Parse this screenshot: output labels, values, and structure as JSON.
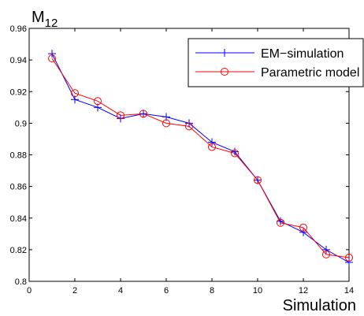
{
  "chart_data": {
    "type": "line",
    "title": "",
    "xlabel": "Simulation",
    "ylabel": "M",
    "ylabel_subscript": "12",
    "xlim": [
      0,
      14
    ],
    "ylim": [
      0.8,
      0.96
    ],
    "xticks": [
      0,
      2,
      4,
      6,
      8,
      10,
      12,
      14
    ],
    "yticks": [
      0.8,
      0.82,
      0.84,
      0.86,
      0.88,
      0.9,
      0.92,
      0.94,
      0.96
    ],
    "x_tick_labels": [
      "0",
      "2",
      "4",
      "6",
      "8",
      "10",
      "12",
      "14"
    ],
    "y_tick_labels": [
      "0.8",
      "0.82",
      "0.84",
      "0.86",
      "0.88",
      "0.9",
      "0.92",
      "0.94",
      "0.96"
    ],
    "grid": false,
    "legend_position": "top-right",
    "x": [
      1,
      2,
      3,
      4,
      5,
      6,
      7,
      8,
      9,
      10,
      11,
      12,
      13,
      14
    ],
    "series": [
      {
        "name": "EM−simulation",
        "color": "#0000ff",
        "marker": "plus",
        "values": [
          0.944,
          0.915,
          0.91,
          0.903,
          0.906,
          0.904,
          0.9,
          0.888,
          0.882,
          0.864,
          0.838,
          0.831,
          0.82,
          0.812
        ]
      },
      {
        "name": "Parametric model",
        "color": "#ff0000",
        "marker": "circle",
        "values": [
          0.941,
          0.919,
          0.914,
          0.905,
          0.906,
          0.9,
          0.898,
          0.885,
          0.881,
          0.864,
          0.837,
          0.834,
          0.817,
          0.815
        ]
      }
    ]
  }
}
